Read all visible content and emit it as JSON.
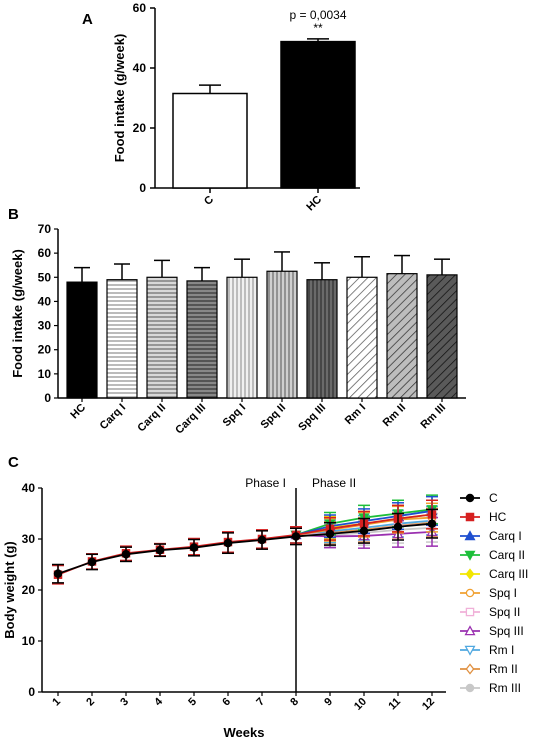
{
  "chart_data": [
    {
      "panel": "A",
      "type": "bar",
      "ylabel": "Food intake (g/week)",
      "ylim": [
        0,
        60
      ],
      "yticks": [
        0,
        20,
        40,
        60
      ],
      "categories": [
        "C",
        "HC"
      ],
      "values": [
        31.5,
        48.8
      ],
      "errors": [
        2.8,
        0.9
      ],
      "fills": [
        "#ffffff",
        "#000000"
      ],
      "annotation": {
        "p_text": "p = 0,0034",
        "stars": "**"
      }
    },
    {
      "panel": "B",
      "type": "bar",
      "ylabel": "Food intake (g/week)",
      "ylim": [
        0,
        70
      ],
      "yticks": [
        0,
        10,
        20,
        30,
        40,
        50,
        60,
        70
      ],
      "categories": [
        "HC",
        "Carq I",
        "Carq II",
        "Carq III",
        "Spq I",
        "Spq II",
        "Spq III",
        "Rm I",
        "Rm II",
        "Rm III"
      ],
      "values": [
        48,
        49,
        50,
        48.5,
        50,
        52.5,
        49,
        50,
        51.5,
        51
      ],
      "errors": [
        6,
        6.5,
        7,
        5.5,
        7.5,
        8,
        7,
        8.5,
        7.5,
        6.5
      ],
      "patterns": [
        "solid-black",
        "hlines-light",
        "hlines-medium",
        "hlines-dark",
        "vlines-light",
        "vlines-medium",
        "vlines-dark",
        "diag-light",
        "diag-medium",
        "diag-dark"
      ]
    },
    {
      "panel": "C",
      "type": "line",
      "xlabel": "Weeks",
      "ylabel": "Body weight (g)",
      "ylim": [
        0,
        40
      ],
      "yticks": [
        0,
        10,
        20,
        30,
        40
      ],
      "x": [
        1,
        2,
        3,
        4,
        5,
        6,
        7,
        8,
        9,
        10,
        11,
        12
      ],
      "phase_line_x": 8,
      "phase_labels": [
        "Phase I",
        "Phase II"
      ],
      "series": [
        {
          "name": "C",
          "color": "#000000",
          "marker": "circle",
          "values": [
            23.2,
            25.5,
            27.0,
            27.8,
            28.3,
            29.2,
            29.8,
            30.5,
            31.0,
            31.6,
            32.4,
            33.0
          ]
        },
        {
          "name": "HC",
          "color": "#d62020",
          "marker": "square",
          "values": [
            23.0,
            25.6,
            27.2,
            27.9,
            28.5,
            29.4,
            30.0,
            30.8,
            32.0,
            33.0,
            34.0,
            34.8
          ]
        },
        {
          "name": "Carq I",
          "color": "#1f4fd0",
          "marker": "triangle-up",
          "values": [
            null,
            null,
            null,
            null,
            null,
            null,
            null,
            30.8,
            32.5,
            33.5,
            34.5,
            35.5
          ]
        },
        {
          "name": "Carq II",
          "color": "#1dbf3a",
          "marker": "triangle-down",
          "values": [
            null,
            null,
            null,
            null,
            null,
            null,
            null,
            30.8,
            33.0,
            34.2,
            35.0,
            35.8
          ]
        },
        {
          "name": "Carq III",
          "color": "#f2e600",
          "marker": "diamond",
          "values": [
            null,
            null,
            null,
            null,
            null,
            null,
            null,
            30.8,
            32.2,
            33.0,
            34.0,
            34.8
          ]
        },
        {
          "name": "Spq I",
          "color": "#f0a030",
          "marker": "circle-open",
          "values": [
            null,
            null,
            null,
            null,
            null,
            null,
            null,
            30.8,
            31.8,
            32.8,
            33.8,
            34.2
          ]
        },
        {
          "name": "Spq II",
          "color": "#f0b0d8",
          "marker": "square-open",
          "values": [
            null,
            null,
            null,
            null,
            null,
            null,
            null,
            30.8,
            31.0,
            31.6,
            32.5,
            33.0
          ]
        },
        {
          "name": "Spq III",
          "color": "#9a30b0",
          "marker": "triangle-up-open",
          "values": [
            null,
            null,
            null,
            null,
            null,
            null,
            null,
            30.8,
            30.5,
            30.6,
            31.0,
            31.4
          ]
        },
        {
          "name": "Rm I",
          "color": "#50a8e0",
          "marker": "triangle-down-open",
          "values": [
            null,
            null,
            null,
            null,
            null,
            null,
            null,
            30.8,
            31.5,
            32.2,
            33.0,
            33.6
          ]
        },
        {
          "name": "Rm II",
          "color": "#e09040",
          "marker": "diamond-open",
          "values": [
            null,
            null,
            null,
            null,
            null,
            null,
            null,
            30.8,
            31.2,
            31.8,
            32.6,
            33.2
          ]
        },
        {
          "name": "Rm III",
          "color": "#c8c8c8",
          "marker": "circle",
          "values": [
            null,
            null,
            null,
            null,
            null,
            null,
            null,
            30.8,
            30.8,
            31.2,
            31.8,
            32.2
          ]
        }
      ],
      "error": [
        1.8,
        1.5,
        1.4,
        1.2,
        1.6,
        2.0,
        1.8,
        1.6,
        2.2,
        2.4,
        2.6,
        2.8
      ],
      "legend_position": "right"
    }
  ]
}
